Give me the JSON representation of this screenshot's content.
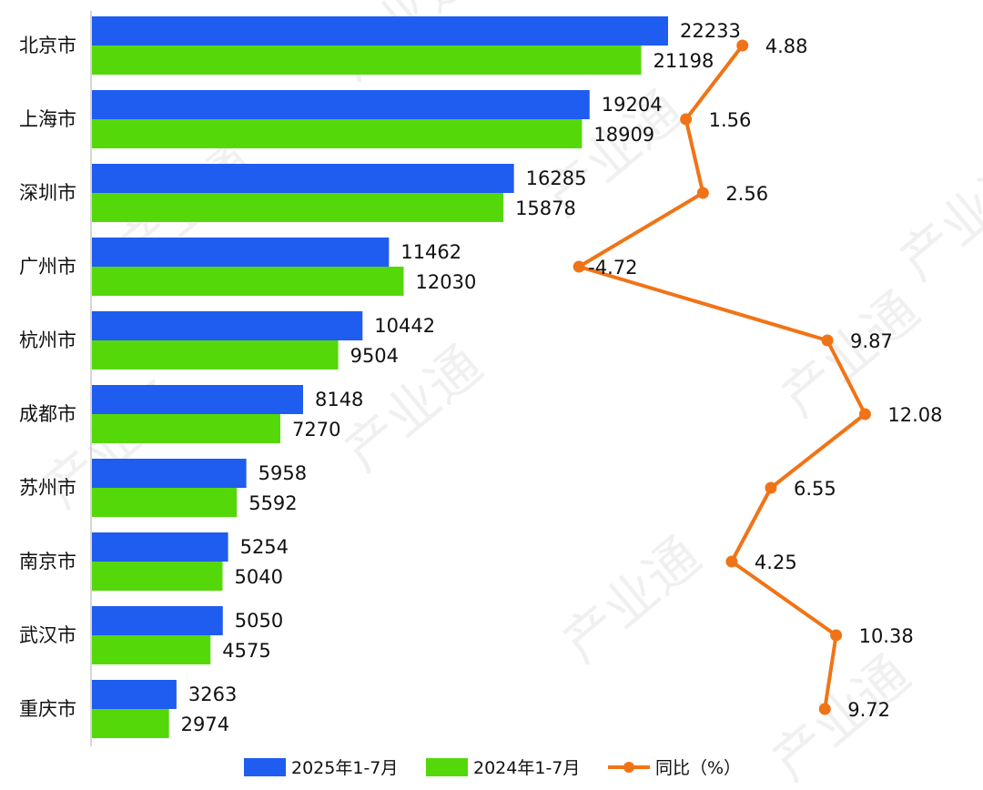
{
  "chart_data": {
    "type": "bar",
    "orientation": "horizontal",
    "categories": [
      "北京市",
      "上海市",
      "深圳市",
      "广州市",
      "杭州市",
      "成都市",
      "苏州市",
      "南京市",
      "武汉市",
      "重庆市"
    ],
    "series": [
      {
        "name": "2025年1-7月",
        "type": "bar",
        "color": "#1f5cf0",
        "values": [
          22233,
          19204,
          16285,
          11462,
          10442,
          8148,
          5958,
          5254,
          5050,
          3263
        ]
      },
      {
        "name": "2024年1-7月",
        "type": "bar",
        "color": "#55d80a",
        "values": [
          21198,
          18909,
          15878,
          12030,
          9504,
          7270,
          5592,
          5040,
          4575,
          2974
        ]
      },
      {
        "name": "同比（%）",
        "type": "line",
        "color": "#f07417",
        "values": [
          "4.88",
          "1.56",
          "2.56",
          "-4.72",
          "9.87",
          "12.08",
          "6.55",
          "4.25",
          "10.38",
          "9.72"
        ]
      }
    ],
    "xlim": [
      0,
      30000
    ],
    "yoy_range": [
      -12,
      15
    ],
    "grid": false,
    "legend": "bottom",
    "watermark": "产业通"
  }
}
